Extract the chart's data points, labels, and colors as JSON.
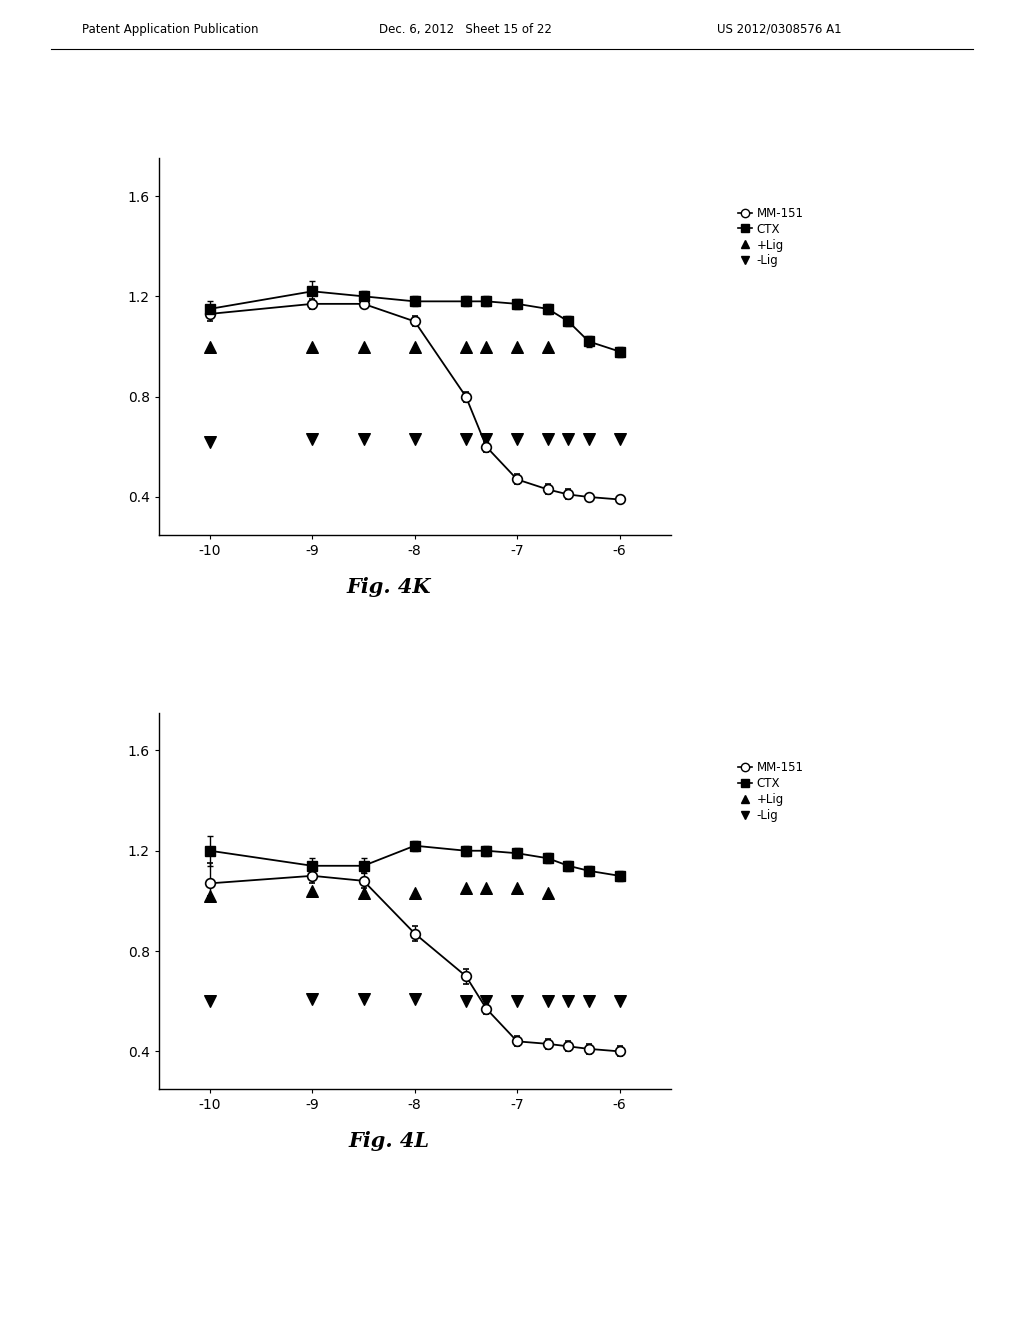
{
  "header_left": "Patent Application Publication",
  "header_mid": "Dec. 6, 2012   Sheet 15 of 22",
  "header_right": "US 2012/0308576 A1",
  "background_color": "#ffffff",
  "plot_K": {
    "title": "Fig. 4K",
    "x_ticks": [
      -10,
      -9,
      -8,
      -7,
      -6
    ],
    "xlim": [
      -10.5,
      -5.5
    ],
    "ylim": [
      0.25,
      1.75
    ],
    "yticks": [
      0.4,
      0.8,
      1.2,
      1.6
    ],
    "mm151_x": [
      -10,
      -9,
      -8.5,
      -8,
      -7.5,
      -7.3,
      -7,
      -6.7,
      -6.5,
      -6.3,
      -6
    ],
    "mm151_y": [
      1.13,
      1.17,
      1.17,
      1.1,
      0.8,
      0.6,
      0.47,
      0.43,
      0.41,
      0.4,
      0.39
    ],
    "ctx_x": [
      -10,
      -9,
      -8.5,
      -8,
      -7.5,
      -7.3,
      -7,
      -6.7,
      -6.5,
      -6.3,
      -6
    ],
    "ctx_y": [
      1.15,
      1.22,
      1.2,
      1.18,
      1.18,
      1.18,
      1.17,
      1.15,
      1.1,
      1.02,
      0.98
    ],
    "plus_lig_x": [
      -10,
      -9,
      -8.5,
      -8,
      -7.5,
      -7.3,
      -7,
      -6.7
    ],
    "plus_lig_y": [
      1.0,
      1.0,
      1.0,
      1.0,
      1.0,
      1.0,
      1.0,
      1.0
    ],
    "minus_lig_x": [
      -10,
      -9,
      -8.5,
      -8,
      -7.5,
      -7.3,
      -7,
      -6.7,
      -6.5,
      -6.3,
      -6
    ],
    "minus_lig_y": [
      0.62,
      0.63,
      0.63,
      0.63,
      0.63,
      0.63,
      0.63,
      0.63,
      0.63,
      0.63,
      0.63
    ],
    "mm151_err_lo": [
      0.03,
      0.02,
      0.01,
      0.02,
      0.02,
      0.02,
      0.02,
      0.02,
      0.02,
      0.01,
      0.01
    ],
    "mm151_err_hi": [
      0.03,
      0.02,
      0.01,
      0.02,
      0.02,
      0.02,
      0.02,
      0.02,
      0.02,
      0.01,
      0.01
    ],
    "ctx_err_lo": [
      0.03,
      0.04,
      0.02,
      0.02,
      0.02,
      0.02,
      0.02,
      0.02,
      0.02,
      0.02,
      0.02
    ],
    "ctx_err_hi": [
      0.03,
      0.04,
      0.02,
      0.02,
      0.02,
      0.02,
      0.02,
      0.02,
      0.02,
      0.02,
      0.02
    ]
  },
  "plot_L": {
    "title": "Fig. 4L",
    "x_ticks": [
      -10,
      -9,
      -8,
      -7,
      -6
    ],
    "xlim": [
      -10.5,
      -5.5
    ],
    "ylim": [
      0.25,
      1.75
    ],
    "yticks": [
      0.4,
      0.8,
      1.2,
      1.6
    ],
    "mm151_x": [
      -10,
      -9,
      -8.5,
      -8,
      -7.5,
      -7.3,
      -7,
      -6.7,
      -6.5,
      -6.3,
      -6
    ],
    "mm151_y": [
      1.07,
      1.1,
      1.08,
      0.87,
      0.7,
      0.57,
      0.44,
      0.43,
      0.42,
      0.41,
      0.4
    ],
    "ctx_x": [
      -10,
      -9,
      -8.5,
      -8,
      -7.5,
      -7.3,
      -7,
      -6.7,
      -6.5,
      -6.3,
      -6
    ],
    "ctx_y": [
      1.2,
      1.14,
      1.14,
      1.22,
      1.2,
      1.2,
      1.19,
      1.17,
      1.14,
      1.12,
      1.1
    ],
    "plus_lig_x": [
      -10,
      -9,
      -8.5,
      -8,
      -7.5,
      -7.3,
      -7,
      -6.7
    ],
    "plus_lig_y": [
      1.02,
      1.04,
      1.03,
      1.03,
      1.05,
      1.05,
      1.05,
      1.03
    ],
    "minus_lig_x": [
      -10,
      -9,
      -8.5,
      -8,
      -7.5,
      -7.3,
      -7,
      -6.7,
      -6.5,
      -6.3,
      -6
    ],
    "minus_lig_y": [
      0.6,
      0.61,
      0.61,
      0.61,
      0.6,
      0.6,
      0.6,
      0.6,
      0.6,
      0.6,
      0.6
    ],
    "mm151_err_lo": [
      0.05,
      0.03,
      0.03,
      0.03,
      0.03,
      0.02,
      0.02,
      0.02,
      0.02,
      0.02,
      0.02
    ],
    "mm151_err_hi": [
      0.08,
      0.03,
      0.03,
      0.03,
      0.03,
      0.02,
      0.02,
      0.02,
      0.02,
      0.02,
      0.02
    ],
    "ctx_err_lo": [
      0.06,
      0.03,
      0.03,
      0.02,
      0.02,
      0.02,
      0.02,
      0.02,
      0.02,
      0.02,
      0.02
    ],
    "ctx_err_hi": [
      0.06,
      0.03,
      0.03,
      0.02,
      0.02,
      0.02,
      0.02,
      0.02,
      0.02,
      0.02,
      0.02
    ]
  },
  "legend_labels": [
    "MM-151",
    "CTX",
    "+Lig",
    "-Lig"
  ],
  "line_color": "#000000",
  "marker_size": 7,
  "capsize": 2
}
